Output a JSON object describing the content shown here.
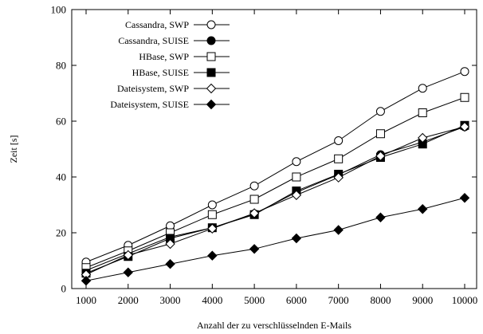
{
  "chart_data": {
    "type": "line",
    "title": "",
    "xlabel": "Anzahl der zu verschlüsselnden E-Mails",
    "ylabel": "Zeit [s]",
    "xlim": [
      1000,
      10000
    ],
    "ylim": [
      0,
      100
    ],
    "xticks": [
      1000,
      2000,
      3000,
      4000,
      5000,
      6000,
      7000,
      8000,
      9000,
      10000
    ],
    "yticks": [
      0,
      20,
      40,
      60,
      80,
      100
    ],
    "grid": false,
    "legend_position": "top-left",
    "x": [
      1000,
      2000,
      3000,
      4000,
      5000,
      6000,
      7000,
      8000,
      9000,
      10000
    ],
    "series": [
      {
        "name": "Cassandra, SWP",
        "marker": "circle-open",
        "values": [
          9.5,
          15.5,
          22.5,
          30.0,
          36.8,
          45.5,
          53.0,
          63.5,
          71.8,
          77.8
        ]
      },
      {
        "name": "Cassandra, SUISE",
        "marker": "circle-filled",
        "values": [
          6.5,
          12.5,
          18.5,
          21.8,
          26.8,
          34.5,
          40.8,
          48.0,
          52.5,
          58.0
        ]
      },
      {
        "name": "HBase, SWP",
        "marker": "square-open",
        "values": [
          7.5,
          13.5,
          20.0,
          26.5,
          32.0,
          40.0,
          46.5,
          55.5,
          63.0,
          68.5
        ]
      },
      {
        "name": "HBase, SUISE",
        "marker": "square-filled",
        "values": [
          5.5,
          11.5,
          18.0,
          21.8,
          26.5,
          35.0,
          41.0,
          47.0,
          51.8,
          58.5
        ]
      },
      {
        "name": "Dateisystem, SWP",
        "marker": "diamond-open",
        "values": [
          5.0,
          12.0,
          16.0,
          21.5,
          27.0,
          33.5,
          39.8,
          47.5,
          54.0,
          58.0
        ]
      },
      {
        "name": "Dateisystem, SUISE",
        "marker": "diamond-filled",
        "values": [
          2.8,
          5.8,
          8.8,
          11.8,
          14.2,
          18.0,
          21.0,
          25.5,
          28.5,
          32.5
        ]
      }
    ]
  }
}
